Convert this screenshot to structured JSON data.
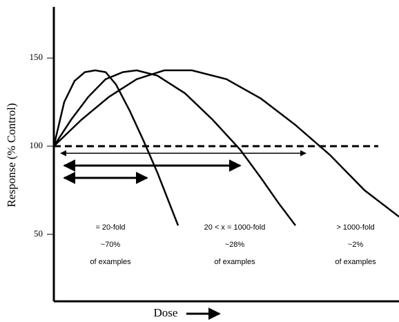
{
  "chart_data": {
    "type": "line",
    "y_label": "Response  (% Control)",
    "x_label": "Dose",
    "ylim": [
      12,
      179
    ],
    "yticks": [
      50,
      100,
      150
    ],
    "xlim": [
      0,
      100
    ],
    "reference_line": 100,
    "series": [
      {
        "color": "#000000",
        "x": [
          0,
          3,
          6,
          9,
          12,
          15,
          18,
          22,
          26,
          30,
          34,
          36
        ],
        "values": [
          100,
          125,
          137,
          142,
          143,
          142,
          135,
          120,
          103,
          85,
          65,
          55
        ]
      },
      {
        "color": "#000000",
        "x": [
          0,
          5,
          10,
          15,
          20,
          24,
          30,
          38,
          46,
          54,
          60,
          65,
          70
        ],
        "values": [
          100,
          115,
          128,
          138,
          142,
          143,
          140,
          130,
          115,
          98,
          82,
          68,
          55
        ]
      },
      {
        "color": "#000000",
        "x": [
          0,
          8,
          16,
          24,
          32,
          40,
          50,
          60,
          70,
          80,
          90,
          100
        ],
        "values": [
          100,
          115,
          128,
          138,
          143,
          143,
          138,
          127,
          112,
          95,
          75,
          60
        ]
      }
    ],
    "ranges": [
      {
        "x": [
          2,
          73
        ],
        "y": 96
      },
      {
        "x": [
          3,
          54
        ],
        "y": 89
      },
      {
        "x": [
          3,
          27
        ],
        "y": 82
      }
    ],
    "annotations": [
      {
        "lines": [
          "= 20-fold",
          "~70%",
          "of examples"
        ]
      },
      {
        "lines": [
          "20 < x = 1000-fold",
          "~28%",
          "of examples"
        ]
      },
      {
        "lines": [
          "> 1000-fold",
          "~2%",
          "of examples"
        ]
      }
    ]
  }
}
